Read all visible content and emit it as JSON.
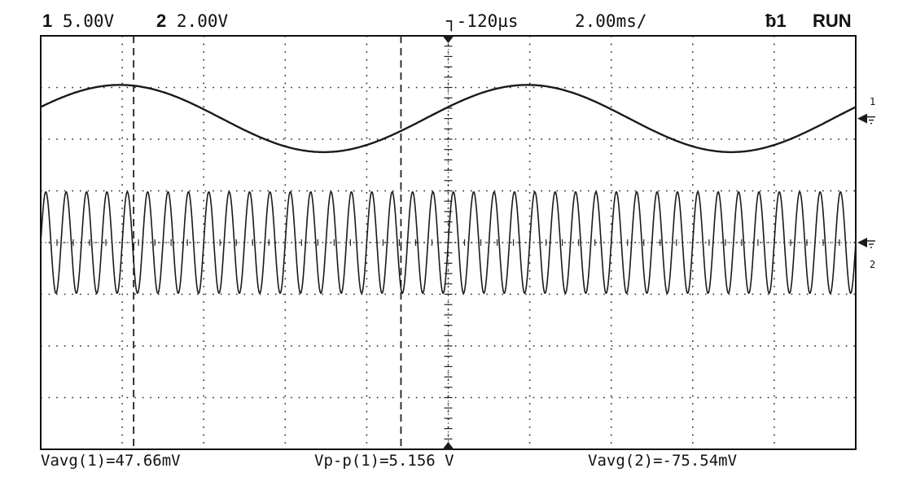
{
  "header": {
    "ch1_num": "1",
    "ch1_scale": "5.00V",
    "ch2_num": "2",
    "ch2_scale": "2.00V",
    "delay": "-120µs",
    "timebase": "2.00ms/",
    "trigger": "ƀ1",
    "run_state": "RUN"
  },
  "markers": {
    "ch1_label": "1",
    "ch2_label": "2"
  },
  "measurements": {
    "m1": "Vavg(1)=47.66mV",
    "m2": "Vp-p(1)=5.156 V",
    "m3": "Vavg(2)=-75.54mV"
  },
  "colors": {
    "trace": "#1a1a1a",
    "grid": "#222222",
    "background": "#ffffff"
  },
  "chart_data": {
    "type": "line",
    "x_divisions": 10,
    "y_divisions": 8,
    "series": [
      {
        "channel": "1",
        "waveform": "sine",
        "cycles_on_screen": 2,
        "amplitude_divisions": 0.5
      },
      {
        "channel": "2",
        "waveform": "sine",
        "cycles_on_screen": 40,
        "amplitude_divisions": 1.0
      }
    ]
  }
}
